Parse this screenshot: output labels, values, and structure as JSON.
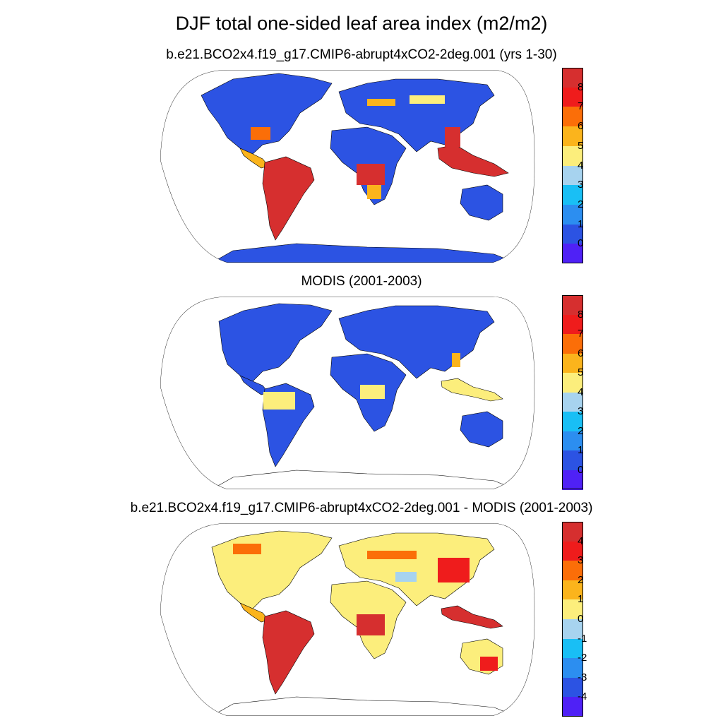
{
  "title": "DJF total one-sided leaf area index (m2/m2)",
  "panels": [
    {
      "subtitle": "b.e21.BCO2x4.f19_g17.CMIP6-abrupt4xCO2-2deg.001 (yrs 1-30)",
      "kind": "model",
      "colorbar": {
        "labels": [
          "8",
          "7",
          "6",
          "5",
          "4",
          "3",
          "2",
          "1",
          "0"
        ],
        "colors": [
          "#d62f2f",
          "#ef1c1c",
          "#fb6e08",
          "#fbb41c",
          "#fcee7c",
          "#a7d3ef",
          "#19bff5",
          "#2c8ef0",
          "#2c53e3",
          "#4f21f6"
        ]
      }
    },
    {
      "subtitle": "MODIS (2001-2003)",
      "kind": "obs",
      "colorbar": {
        "labels": [
          "8",
          "7",
          "6",
          "5",
          "4",
          "3",
          "2",
          "1",
          "0"
        ],
        "colors": [
          "#d62f2f",
          "#ef1c1c",
          "#fb6e08",
          "#fbb41c",
          "#fcee7c",
          "#a7d3ef",
          "#19bff5",
          "#2c8ef0",
          "#2c53e3",
          "#4f21f6"
        ]
      }
    },
    {
      "subtitle": "b.e21.BCO2x4.f19_g17.CMIP6-abrupt4xCO2-2deg.001 - MODIS (2001-2003)",
      "kind": "diff",
      "colorbar": {
        "labels": [
          "4",
          "3",
          "2",
          "1",
          "0",
          "-1",
          "-2",
          "-3",
          "-4"
        ],
        "colors": [
          "#d62f2f",
          "#ef1c1c",
          "#fb6e08",
          "#fbb41c",
          "#fcee7c",
          "#a7d3ef",
          "#19bff5",
          "#2c8ef0",
          "#2c53e3",
          "#4f21f6"
        ]
      }
    }
  ]
}
